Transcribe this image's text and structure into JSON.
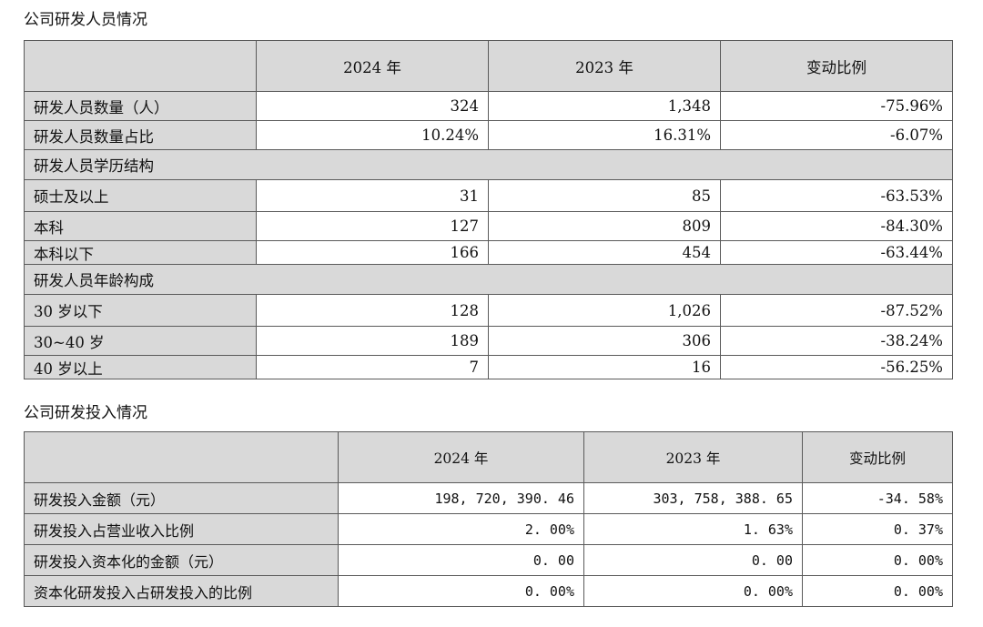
{
  "personnel": {
    "title": "公司研发人员情况",
    "headers": [
      "",
      "2024 年",
      "2023 年",
      "变动比例"
    ],
    "rows": [
      {
        "type": "data",
        "label": "研发人员数量（人）",
        "v2024": "324",
        "v2023": "1,348",
        "change": "-75.96%"
      },
      {
        "type": "data",
        "label": "研发人员数量占比",
        "v2024": "10.24%",
        "v2023": "16.31%",
        "change": "-6.07%"
      },
      {
        "type": "group",
        "label": "研发人员学历结构"
      },
      {
        "type": "data",
        "label": "硕士及以上",
        "v2024": "31",
        "v2023": "85",
        "change": "-63.53%"
      },
      {
        "type": "data",
        "label": "本科",
        "v2024": "127",
        "v2023": "809",
        "change": "-84.30%"
      },
      {
        "type": "data",
        "label": "本科以下",
        "v2024": "166",
        "v2023": "454",
        "change": "-63.44%"
      },
      {
        "type": "group",
        "label": "研发人员年龄构成"
      },
      {
        "type": "data",
        "label": "30 岁以下",
        "v2024": "128",
        "v2023": "1,026",
        "change": "-87.52%"
      },
      {
        "type": "data",
        "label": "30~40 岁",
        "v2024": "189",
        "v2023": "306",
        "change": "-38.24%"
      },
      {
        "type": "data",
        "label": "40 岁以上",
        "v2024": "7",
        "v2023": "16",
        "change": "-56.25%"
      }
    ]
  },
  "investment": {
    "title": "公司研发投入情况",
    "headers": [
      "",
      "2024 年",
      "2023 年",
      "变动比例"
    ],
    "rows": [
      {
        "label": "研发投入金额（元）",
        "v2024": "198, 720, 390. 46",
        "v2023": "303, 758, 388. 65",
        "change": "-34. 58%"
      },
      {
        "label": "研发投入占营业收入比例",
        "v2024": "2. 00%",
        "v2023": "1. 63%",
        "change": "0. 37%"
      },
      {
        "label": "研发投入资本化的金额（元）",
        "v2024": "0. 00",
        "v2023": "0. 00",
        "change": "0. 00%"
      },
      {
        "label": "资本化研发投入占研发投入的比例",
        "v2024": "0. 00%",
        "v2023": "0. 00%",
        "change": "0. 00%"
      }
    ]
  }
}
